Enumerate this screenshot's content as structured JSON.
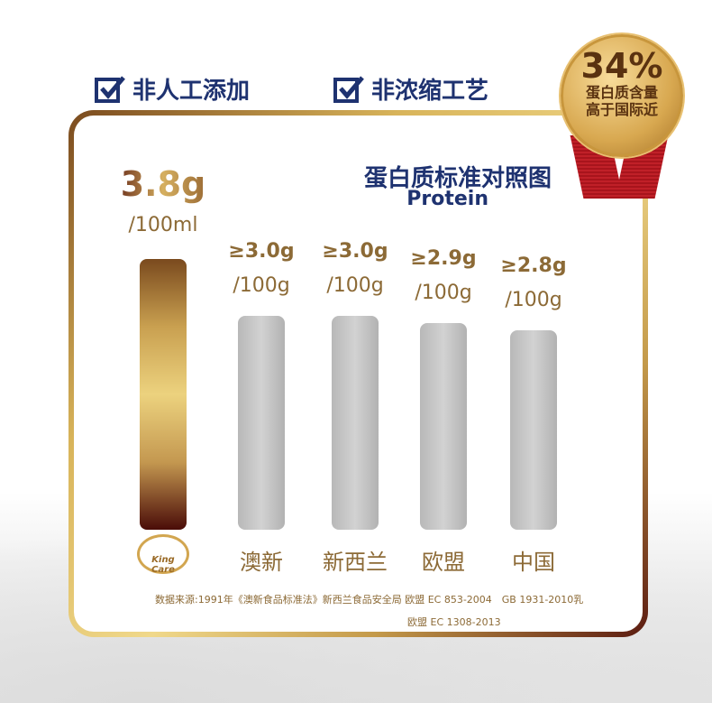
{
  "badges": [
    {
      "label": "非人工添加",
      "icon": "checkbox-icon"
    },
    {
      "label": "非浓缩工艺",
      "icon": "checkbox-icon"
    }
  ],
  "medal": {
    "percent": "34%",
    "line1": "蛋白质含量",
    "line2": "高于国际近"
  },
  "brand_logo": "King Care",
  "colors": {
    "navy": "#1e3270",
    "gold": "#8c6a36",
    "ribbon": "#a8141c"
  },
  "chart_data": {
    "type": "bar",
    "title": "蛋白质标准对照图",
    "subtitle": "Protein",
    "categories": [
      "",
      "澳新",
      "新西兰",
      "欧盟",
      "中国"
    ],
    "values": [
      3.8,
      3.0,
      3.0,
      2.9,
      2.8
    ],
    "value_labels": [
      "3.8g",
      "≥3.0g",
      "≥3.0g",
      "≥2.9g",
      "≥2.8g"
    ],
    "unit_labels": [
      "/100ml",
      "/100g",
      "/100g",
      "/100g",
      "/100g"
    ]
  },
  "source": {
    "line1": "数据来源:1991年《澳新食品标准法》新西兰食品安全局 欧盟 EC 853-2004　GB 1931-2010乳",
    "line2": "欧盟 EC 1308-2013"
  }
}
